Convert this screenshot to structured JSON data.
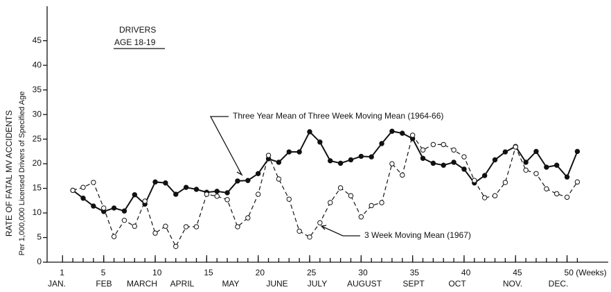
{
  "chart_data": {
    "type": "line",
    "annotations": [
      "DRIVERS",
      "AGE 18-19"
    ],
    "y_label": [
      "RATE OF FATAL MV ACCIDENTS",
      "Per 1,000,000 Licensed Drivers of Specified Age"
    ],
    "months": [
      "JAN.",
      "FEB",
      "MARCH",
      "APRIL",
      "MAY",
      "JUNE",
      "JULY",
      "AUGUST",
      "SEPT",
      "OCT",
      "NOV.",
      "DEC."
    ],
    "x": [
      2,
      3,
      4,
      5,
      6,
      7,
      8,
      9,
      10,
      11,
      12,
      13,
      14,
      15,
      16,
      17,
      18,
      19,
      20,
      21,
      22,
      23,
      24,
      25,
      26,
      27,
      28,
      29,
      30,
      31,
      32,
      33,
      34,
      35,
      36,
      37,
      38,
      39,
      40,
      41,
      42,
      43,
      44,
      45,
      46,
      47,
      48,
      49,
      50,
      51
    ],
    "series": [
      {
        "name": "Three Year Mean of Three Week Moving Mean (1964-66)",
        "color": "#111111",
        "marker": "filled",
        "values": [
          14.6,
          13.0,
          11.4,
          10.3,
          11.0,
          10.4,
          13.7,
          11.8,
          16.3,
          16.1,
          13.8,
          15.2,
          14.8,
          14.2,
          14.4,
          14.1,
          16.5,
          16.6,
          18.0,
          21.0,
          20.3,
          22.4,
          22.4,
          26.5,
          24.4,
          20.6,
          20.1,
          20.8,
          21.5,
          21.4,
          24.1,
          26.6,
          26.2,
          25.1,
          21.1,
          20.1,
          19.7,
          20.3,
          18.9,
          16.1,
          17.6,
          20.8,
          22.4,
          23.5,
          20.3,
          22.5,
          19.3,
          19.7,
          17.3,
          22.5
        ]
      },
      {
        "name": "3 Week Moving Mean (1967)",
        "color": "#111111",
        "marker": "open",
        "dash": true,
        "values": [
          14.6,
          15.2,
          16.2,
          11.0,
          5.2,
          8.5,
          7.3,
          12.4,
          5.9,
          7.3,
          3.2,
          7.2,
          7.2,
          13.8,
          13.4,
          12.7,
          7.2,
          9.0,
          13.8,
          21.7,
          16.9,
          12.8,
          6.3,
          5.1,
          8.0,
          12.1,
          15.1,
          13.5,
          9.2,
          11.5,
          12.1,
          20.0,
          17.7,
          25.8,
          22.8,
          23.9,
          23.9,
          22.8,
          21.4,
          16.6,
          13.1,
          13.5,
          16.2,
          23.4,
          18.7,
          18.0,
          14.9,
          13.9,
          13.2,
          16.3
        ]
      }
    ],
    "xlim": [
      -0.5,
      54
    ],
    "xticks": [
      1,
      5,
      10,
      15,
      20,
      25,
      30,
      35,
      40,
      45,
      {
        "value": 50,
        "label": "50 (Weeks)"
      }
    ],
    "ylim": [
      0,
      52
    ],
    "yticks": [
      0,
      5,
      10,
      15,
      20,
      25,
      30,
      35,
      40,
      45
    ],
    "grid": false
  }
}
